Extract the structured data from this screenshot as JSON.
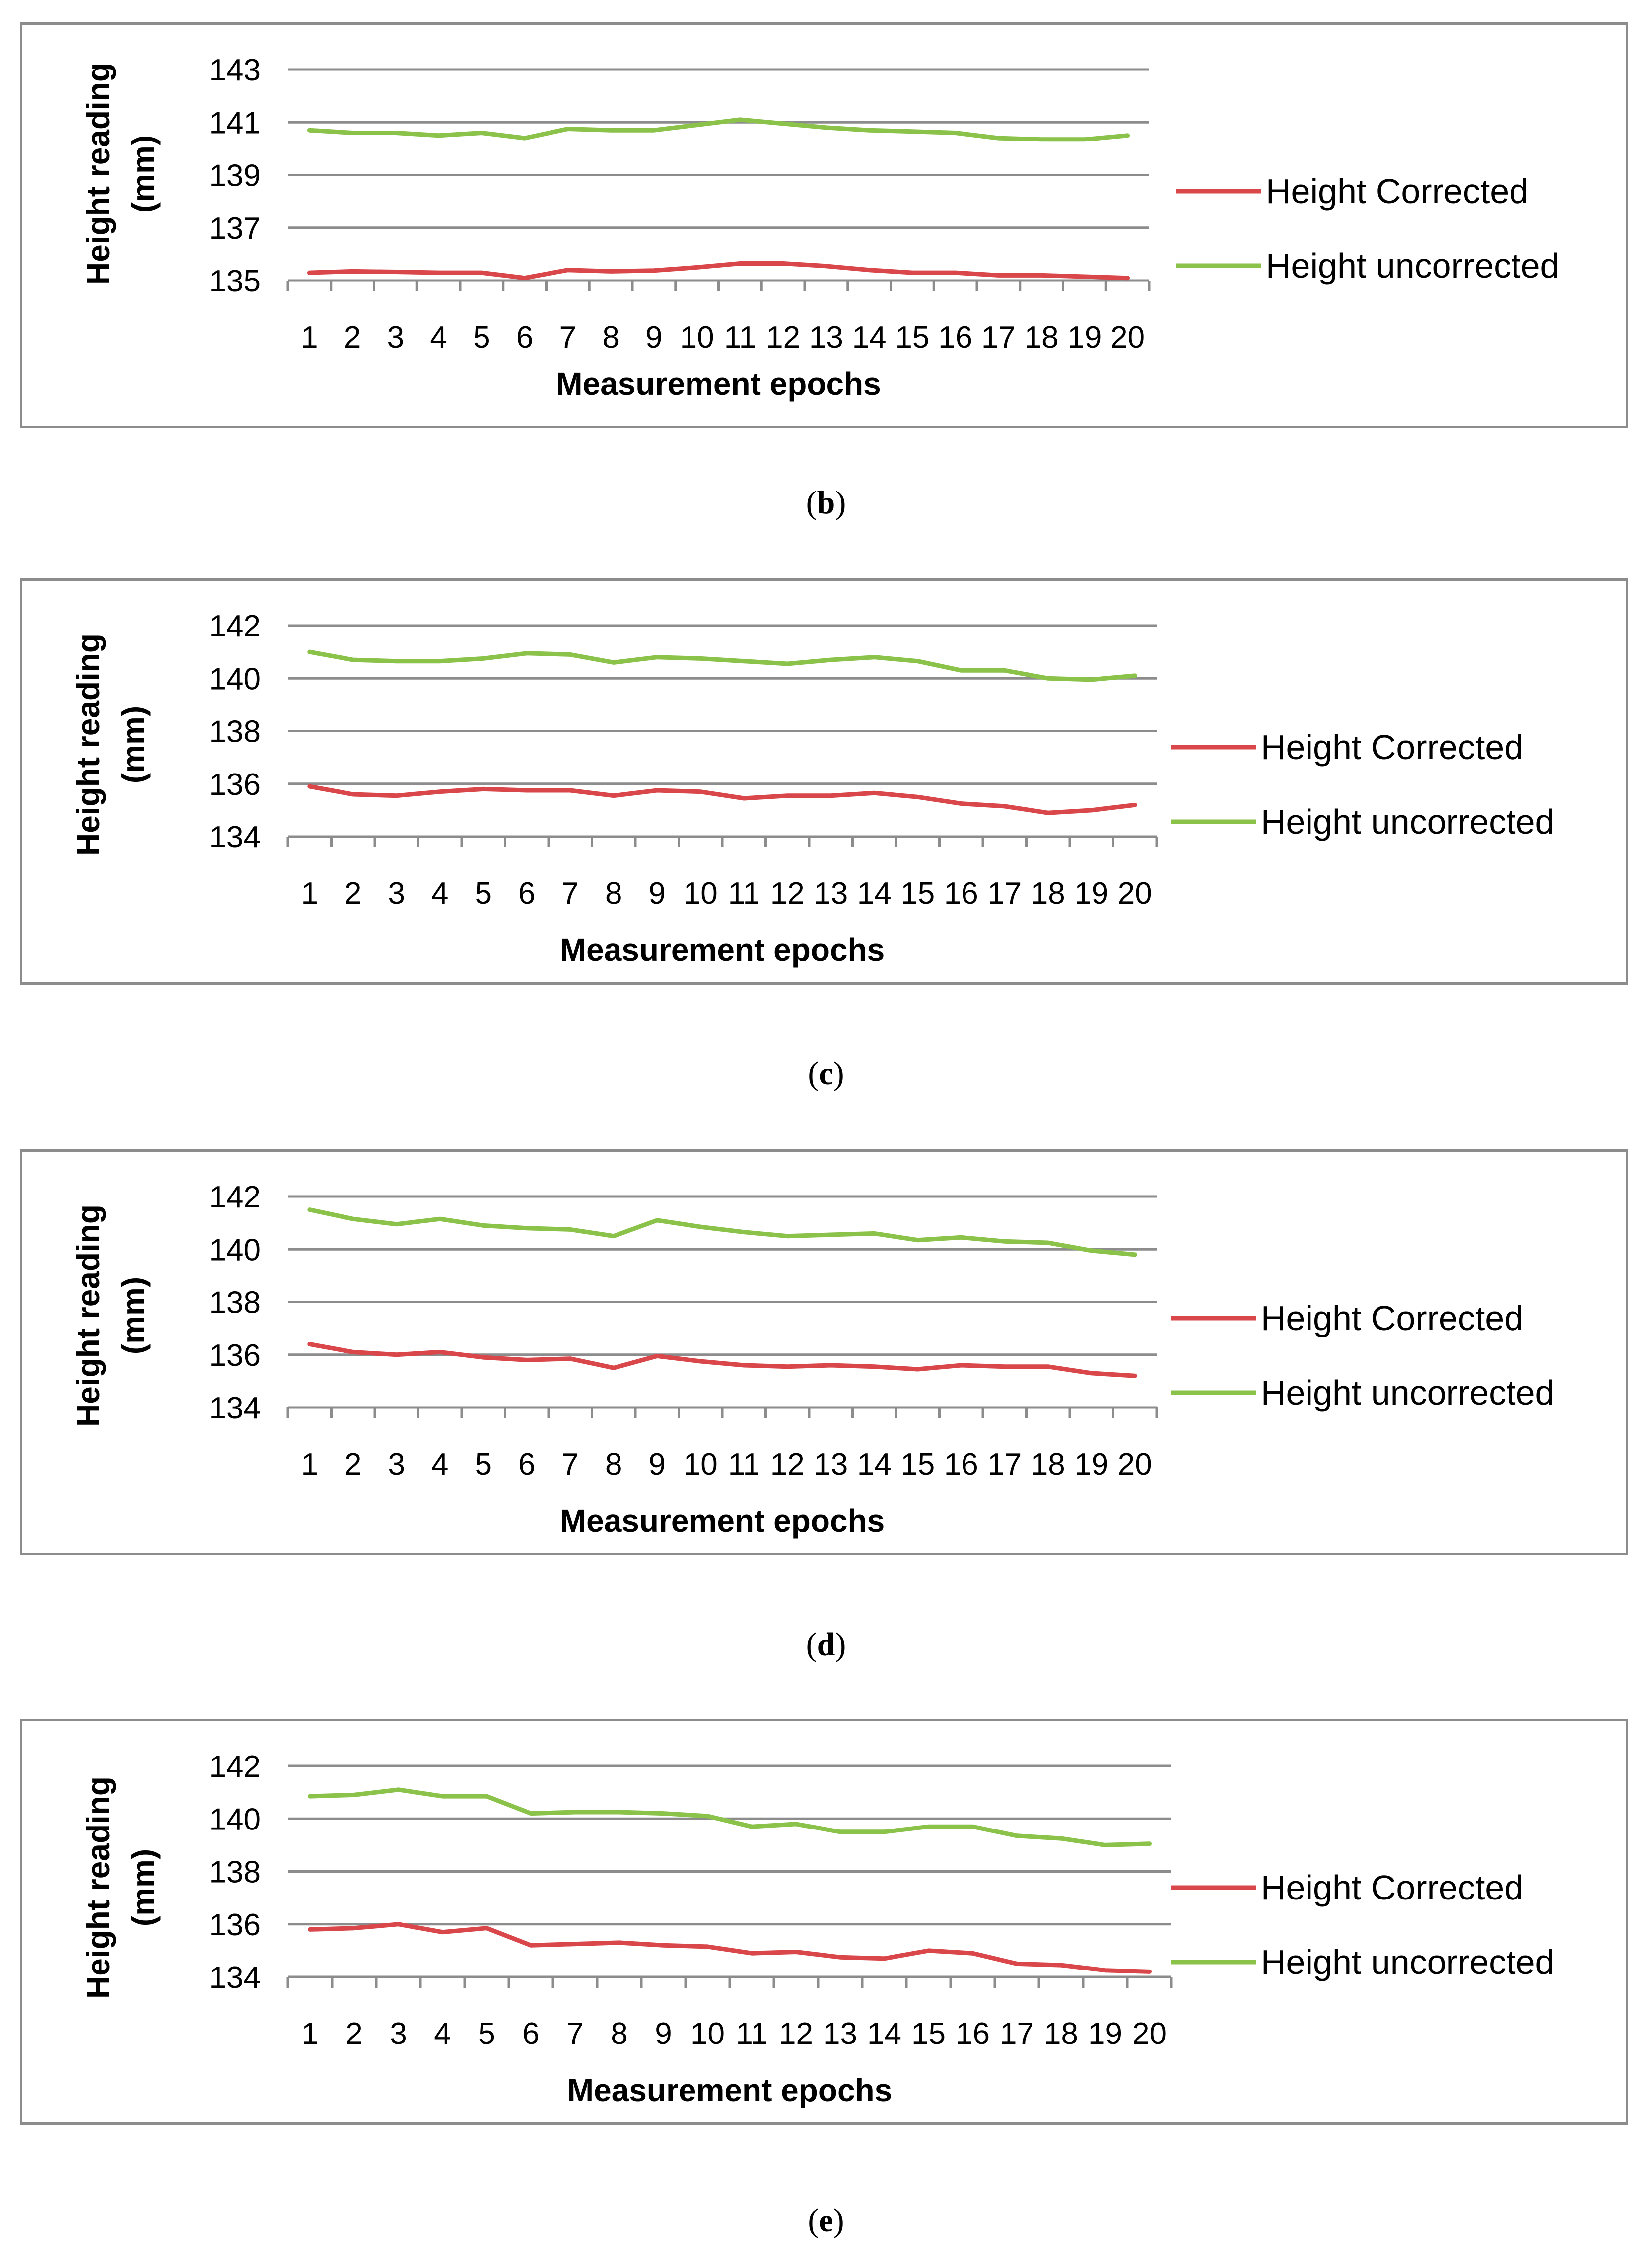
{
  "chart_data": [
    {
      "type": "line",
      "panel": "b",
      "caption": "b",
      "categories": [
        "1",
        "2",
        "3",
        "4",
        "5",
        "6",
        "7",
        "8",
        "9",
        "10",
        "11",
        "12",
        "13",
        "14",
        "15",
        "16",
        "17",
        "18",
        "19",
        "20"
      ],
      "xlabel": "Measurement epochs",
      "ylabel_line1": "Height reading",
      "ylabel_line2": "(mm)",
      "ylim": [
        135,
        143
      ],
      "yticks": [
        135,
        137,
        139,
        141,
        143
      ],
      "series": [
        {
          "name": "Height Corrected",
          "color": "#d9474a",
          "values": [
            135.3,
            135.35,
            135.33,
            135.3,
            135.3,
            135.1,
            135.4,
            135.35,
            135.38,
            135.5,
            135.65,
            135.65,
            135.55,
            135.4,
            135.3,
            135.3,
            135.2,
            135.2,
            135.15,
            135.1
          ]
        },
        {
          "name": "Height uncorrected",
          "color": "#8ac24a",
          "values": [
            140.7,
            140.6,
            140.6,
            140.5,
            140.6,
            140.4,
            140.75,
            140.7,
            140.7,
            140.9,
            141.1,
            140.95,
            140.8,
            140.7,
            140.65,
            140.6,
            140.4,
            140.35,
            140.35,
            140.5
          ]
        }
      ]
    },
    {
      "type": "line",
      "panel": "c",
      "caption": "c",
      "categories": [
        "1",
        "2",
        "3",
        "4",
        "5",
        "6",
        "7",
        "8",
        "9",
        "10",
        "11",
        "12",
        "13",
        "14",
        "15",
        "16",
        "17",
        "18",
        "19",
        "20"
      ],
      "xlabel": "Measurement epochs",
      "ylabel_line1": "Height reading",
      "ylabel_line2": "(mm)",
      "ylim": [
        134,
        142
      ],
      "yticks": [
        134,
        136,
        138,
        140,
        142
      ],
      "series": [
        {
          "name": "Height Corrected",
          "color": "#d9474a",
          "values": [
            135.9,
            135.6,
            135.55,
            135.7,
            135.8,
            135.75,
            135.75,
            135.55,
            135.75,
            135.7,
            135.45,
            135.55,
            135.55,
            135.65,
            135.5,
            135.25,
            135.15,
            134.9,
            135.0,
            135.2
          ]
        },
        {
          "name": "Height uncorrected",
          "color": "#8ac24a",
          "values": [
            141.0,
            140.7,
            140.65,
            140.65,
            140.75,
            140.95,
            140.9,
            140.6,
            140.8,
            140.75,
            140.65,
            140.55,
            140.7,
            140.8,
            140.65,
            140.3,
            140.3,
            140.0,
            139.95,
            140.1
          ]
        }
      ]
    },
    {
      "type": "line",
      "panel": "d",
      "caption": "d",
      "categories": [
        "1",
        "2",
        "3",
        "4",
        "5",
        "6",
        "7",
        "8",
        "9",
        "10",
        "11",
        "12",
        "13",
        "14",
        "15",
        "16",
        "17",
        "18",
        "19",
        "20"
      ],
      "xlabel": "Measurement epochs",
      "ylabel_line1": "Height reading",
      "ylabel_line2": "(mm)",
      "ylim": [
        134,
        142
      ],
      "yticks": [
        134,
        136,
        138,
        140,
        142
      ],
      "series": [
        {
          "name": "Height Corrected",
          "color": "#d9474a",
          "values": [
            136.4,
            136.1,
            136.0,
            136.1,
            135.9,
            135.8,
            135.85,
            135.5,
            135.95,
            135.75,
            135.6,
            135.55,
            135.6,
            135.55,
            135.45,
            135.6,
            135.55,
            135.55,
            135.3,
            135.2
          ]
        },
        {
          "name": "Height uncorrected",
          "color": "#8ac24a",
          "values": [
            141.5,
            141.15,
            140.95,
            141.15,
            140.9,
            140.8,
            140.75,
            140.5,
            141.1,
            140.85,
            140.65,
            140.5,
            140.55,
            140.6,
            140.35,
            140.45,
            140.3,
            140.25,
            139.95,
            139.8
          ]
        }
      ]
    },
    {
      "type": "line",
      "panel": "e",
      "caption": "e",
      "categories": [
        "1",
        "2",
        "3",
        "4",
        "5",
        "6",
        "7",
        "8",
        "9",
        "10",
        "11",
        "12",
        "13",
        "14",
        "15",
        "16",
        "17",
        "18",
        "19",
        "20"
      ],
      "xlabel": "Measurement epochs",
      "ylabel_line1": "Height reading",
      "ylabel_line2": "(mm)",
      "ylim": [
        134,
        142
      ],
      "yticks": [
        134,
        136,
        138,
        140,
        142
      ],
      "series": [
        {
          "name": "Height Corrected",
          "color": "#d9474a",
          "values": [
            135.8,
            135.85,
            136.0,
            135.7,
            135.85,
            135.2,
            135.25,
            135.3,
            135.2,
            135.15,
            134.9,
            134.95,
            134.75,
            134.7,
            135.0,
            134.9,
            134.5,
            134.45,
            134.25,
            134.2
          ]
        },
        {
          "name": "Height uncorrected",
          "color": "#8ac24a",
          "values": [
            140.85,
            140.9,
            141.1,
            140.85,
            140.85,
            140.2,
            140.25,
            140.25,
            140.2,
            140.1,
            139.7,
            139.8,
            139.5,
            139.5,
            139.7,
            139.7,
            139.35,
            139.25,
            139.0,
            139.05
          ]
        }
      ]
    }
  ]
}
